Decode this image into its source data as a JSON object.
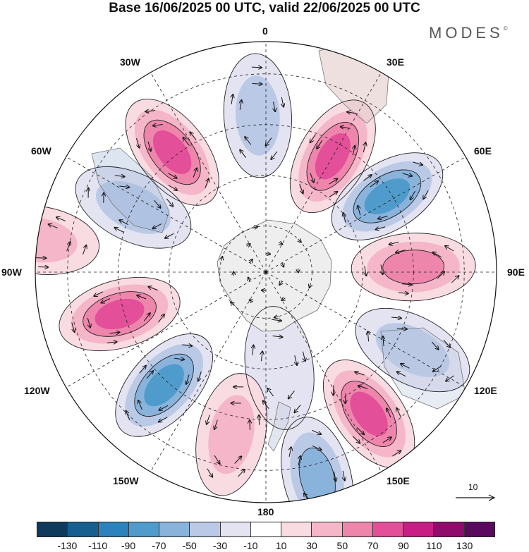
{
  "title": "Base 16/06/2025 00 UTC, valid 22/06/2025 00 UTC",
  "brand": "MODES",
  "brand_mark": "©",
  "longitude_labels": {
    "top": "0",
    "lon30e": "30E",
    "lon60e": "60E",
    "lon90e": "90E",
    "lon120e": "120E",
    "lon150e": "150E",
    "bottom": "180",
    "lon150w": "150W",
    "lon120w": "120W",
    "lon90w": "90W",
    "lon60w": "60W",
    "lon30w": "30W"
  },
  "reference_vector": {
    "label": "10"
  },
  "colorbar": {
    "colors": [
      "#0f3a5c",
      "#175f8f",
      "#2b82bc",
      "#4f9ccc",
      "#89b3db",
      "#bac9e6",
      "#e3e3f1",
      "#ffffff",
      "#f9dbe2",
      "#f4b6c8",
      "#ee86ac",
      "#e34f98",
      "#c81d84",
      "#8e0c6c",
      "#5a0a5e"
    ],
    "ticks": [
      "-130",
      "-110",
      "-90",
      "-70",
      "-50",
      "-30",
      "-10",
      "10",
      "30",
      "50",
      "70",
      "90",
      "110",
      "130"
    ]
  },
  "anomaly_centers": [
    {
      "sign": "positive",
      "strength": 90,
      "angle_deg": -38,
      "radius_frac": 0.66
    },
    {
      "sign": "negative",
      "strength": -50,
      "angle_deg": -3,
      "radius_frac": 0.68
    },
    {
      "sign": "positive",
      "strength": 90,
      "angle_deg": 30,
      "radius_frac": 0.58
    },
    {
      "sign": "negative",
      "strength": -90,
      "angle_deg": 58,
      "radius_frac": 0.62
    },
    {
      "sign": "positive",
      "strength": 70,
      "angle_deg": 88,
      "radius_frac": 0.64
    },
    {
      "sign": "negative",
      "strength": -50,
      "angle_deg": 118,
      "radius_frac": 0.72
    },
    {
      "sign": "positive",
      "strength": 90,
      "angle_deg": 144,
      "radius_frac": 0.76
    },
    {
      "sign": "negative",
      "strength": -70,
      "angle_deg": 166,
      "radius_frac": 0.92
    },
    {
      "sign": "negative",
      "strength": -30,
      "angle_deg": 172,
      "radius_frac": 0.42
    },
    {
      "sign": "positive",
      "strength": 50,
      "angle_deg": -168,
      "radius_frac": 0.72
    },
    {
      "sign": "negative",
      "strength": -90,
      "angle_deg": -138,
      "radius_frac": 0.66
    },
    {
      "sign": "positive",
      "strength": 90,
      "angle_deg": -106,
      "radius_frac": 0.66
    },
    {
      "sign": "negative",
      "strength": -50,
      "angle_deg": -64,
      "radius_frac": 0.64
    },
    {
      "sign": "positive",
      "strength": 50,
      "angle_deg": -82,
      "radius_frac": 1.0
    }
  ]
}
